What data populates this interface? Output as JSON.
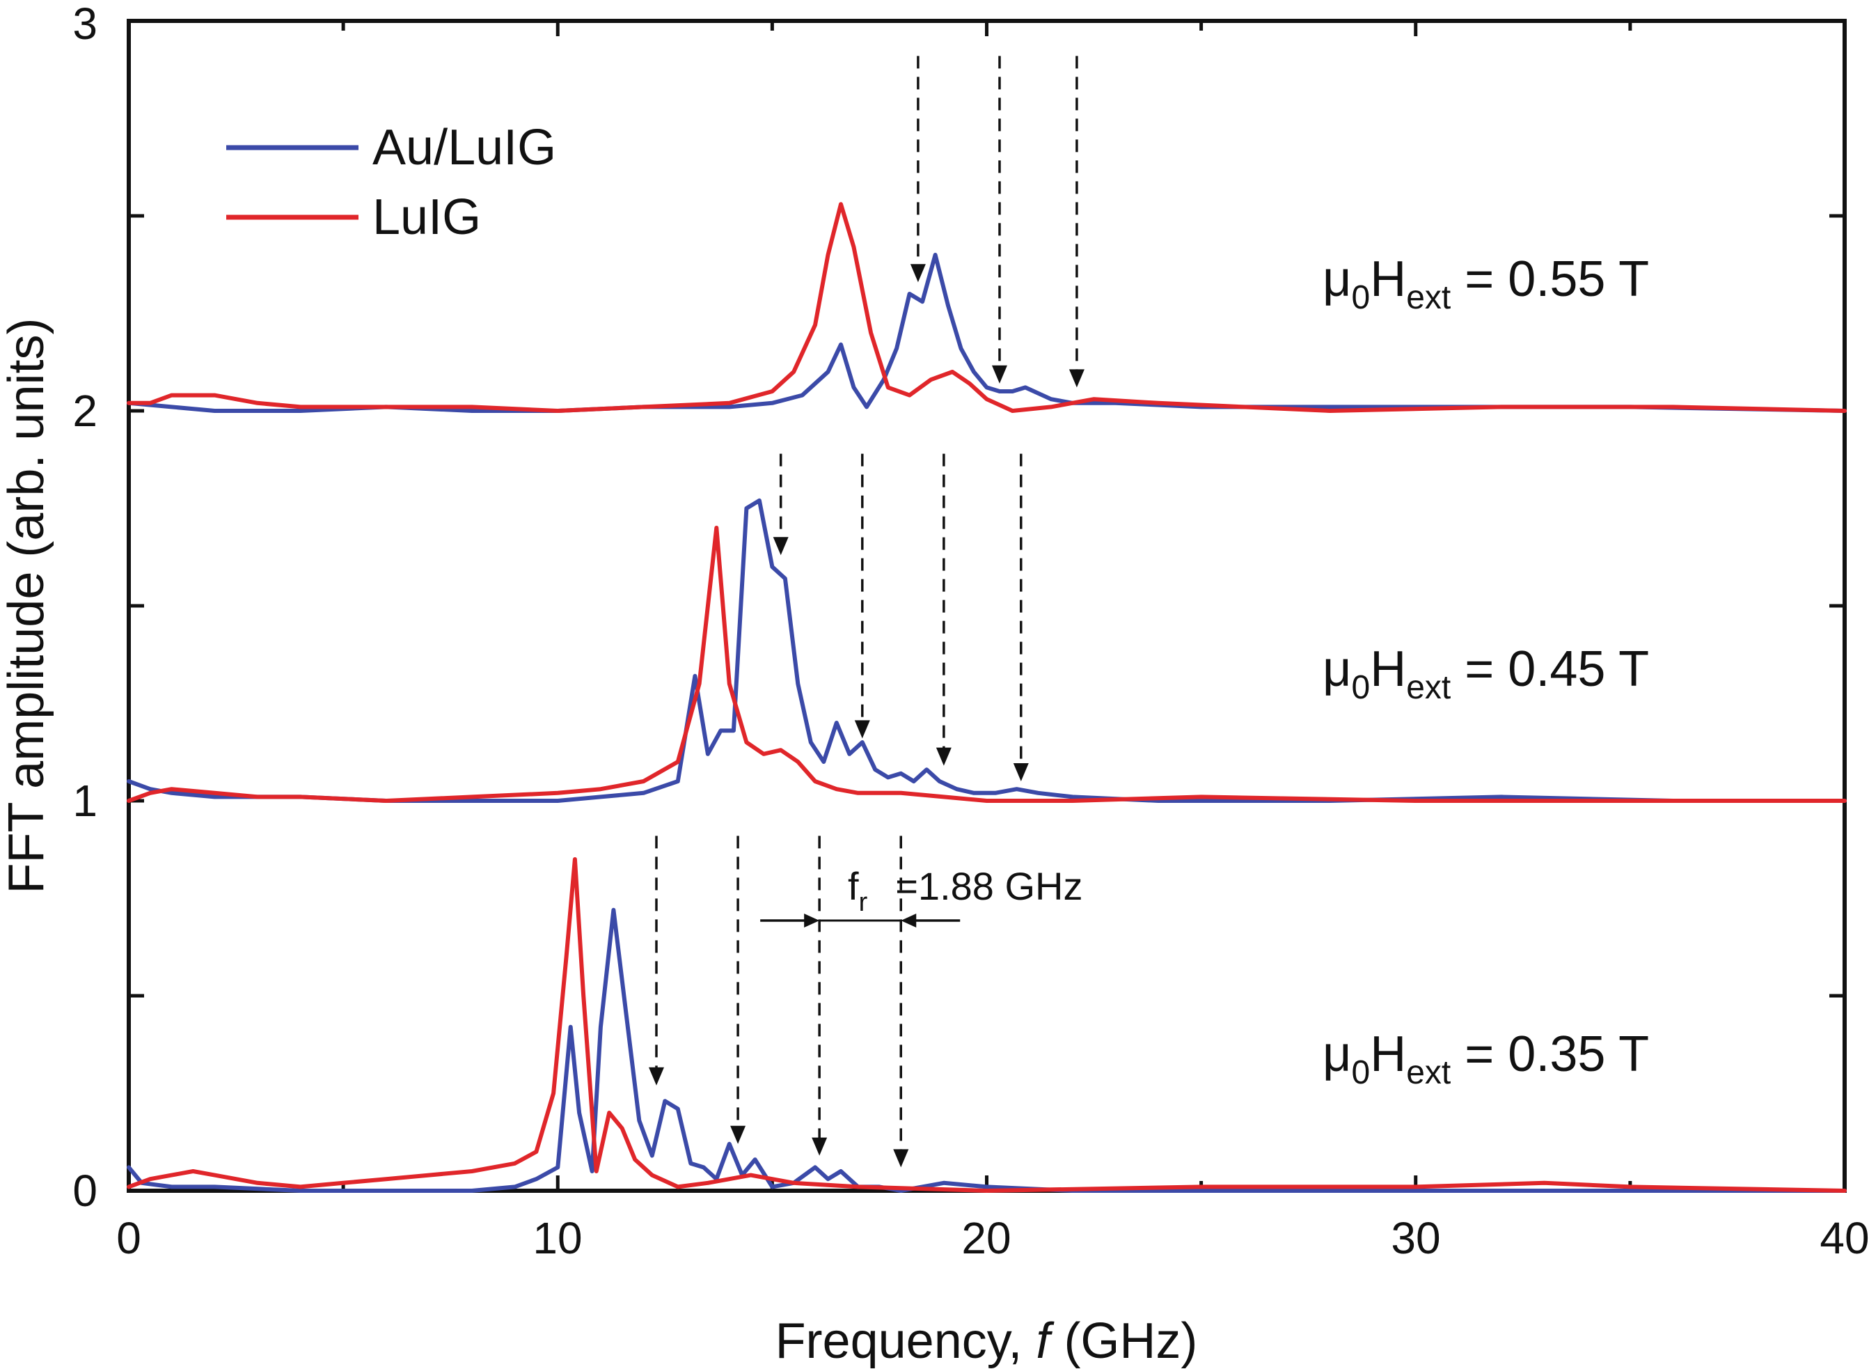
{
  "chart_data": {
    "type": "line",
    "title": "",
    "xlabel_prefix": "Frequency, ",
    "xlabel_var": "f",
    "xlabel_suffix": " (GHz)",
    "ylabel": "FFT amplitude (arb. units)",
    "xlim": [
      0,
      40
    ],
    "ylim": [
      0,
      3
    ],
    "x_ticks": [
      0,
      10,
      20,
      30,
      40
    ],
    "y_ticks": [
      0,
      1,
      2,
      3
    ],
    "legend_position": "top-left",
    "colors": {
      "Au/LuIG": "#3b4aa8",
      "LuIG": "#e0262a",
      "axis": "#111111"
    },
    "legend": [
      {
        "name": "Au/LuIG",
        "color": "#3b4aa8"
      },
      {
        "name": "LuIG",
        "color": "#e0262a"
      }
    ],
    "field_labels": [
      {
        "mu": "μ",
        "sub1": "0",
        "H": "H",
        "sub2": "ext",
        "rest": " = 0.55 T",
        "offset": 2
      },
      {
        "mu": "μ",
        "sub1": "0",
        "H": "H",
        "sub2": "ext",
        "rest": " = 0.45 T",
        "offset": 1
      },
      {
        "mu": "μ",
        "sub1": "0",
        "H": "H",
        "sub2": "ext",
        "rest": " = 0.35 T",
        "offset": 0
      }
    ],
    "annotation": {
      "symbol": "f",
      "sub": "r",
      "text": "=1.88 GHz",
      "arrow_from": 15.0,
      "arrow_to": 18.0
    },
    "arrows": [
      {
        "x": 18.4,
        "y_top": 2.91,
        "y_tip": 2.33
      },
      {
        "x": 20.3,
        "y_top": 2.91,
        "y_tip": 2.07
      },
      {
        "x": 22.1,
        "y_top": 2.91,
        "y_tip": 2.06
      },
      {
        "x": 15.2,
        "y_top": 1.89,
        "y_tip": 1.63
      },
      {
        "x": 17.1,
        "y_top": 1.89,
        "y_tip": 1.16
      },
      {
        "x": 19.0,
        "y_top": 1.89,
        "y_tip": 1.09
      },
      {
        "x": 20.8,
        "y_top": 1.89,
        "y_tip": 1.05
      },
      {
        "x": 12.3,
        "y_top": 0.91,
        "y_tip": 0.27
      },
      {
        "x": 14.2,
        "y_top": 0.91,
        "y_tip": 0.12
      },
      {
        "x": 16.1,
        "y_top": 0.91,
        "y_tip": 0.09
      },
      {
        "x": 18.0,
        "y_top": 0.91,
        "y_tip": 0.06
      }
    ],
    "series": [
      {
        "name": "Au/LuIG (0.55 T)",
        "color": "#3b4aa8",
        "offset": 2,
        "x": [
          0,
          1,
          2,
          4,
          6,
          8,
          10,
          12,
          14,
          15,
          15.7,
          16.3,
          16.6,
          16.9,
          17.2,
          17.6,
          17.9,
          18.2,
          18.5,
          18.8,
          19.1,
          19.4,
          19.7,
          20.0,
          20.3,
          20.6,
          20.9,
          21.5,
          22,
          23,
          25,
          30,
          35,
          40
        ],
        "y": [
          0.02,
          0.01,
          0.0,
          0.0,
          0.01,
          0.0,
          0.0,
          0.01,
          0.01,
          0.02,
          0.04,
          0.1,
          0.17,
          0.06,
          0.01,
          0.08,
          0.16,
          0.3,
          0.28,
          0.4,
          0.27,
          0.16,
          0.1,
          0.06,
          0.05,
          0.05,
          0.06,
          0.03,
          0.02,
          0.02,
          0.01,
          0.01,
          0.01,
          0.0
        ]
      },
      {
        "name": "LuIG (0.55 T)",
        "color": "#e0262a",
        "offset": 2,
        "x": [
          0,
          0.5,
          1,
          2,
          3,
          4,
          6,
          8,
          10,
          12,
          14,
          15,
          15.5,
          16.0,
          16.3,
          16.6,
          16.9,
          17.3,
          17.7,
          18.2,
          18.7,
          19.2,
          19.6,
          20.0,
          20.6,
          21.5,
          22.5,
          24,
          28,
          32,
          36,
          40
        ],
        "y": [
          0.02,
          0.02,
          0.04,
          0.04,
          0.02,
          0.01,
          0.01,
          0.01,
          0.0,
          0.01,
          0.02,
          0.05,
          0.1,
          0.22,
          0.4,
          0.53,
          0.42,
          0.2,
          0.06,
          0.04,
          0.08,
          0.1,
          0.07,
          0.03,
          0.0,
          0.01,
          0.03,
          0.02,
          0.0,
          0.01,
          0.01,
          0.0
        ]
      },
      {
        "name": "Au/LuIG (0.45 T)",
        "color": "#3b4aa8",
        "offset": 1,
        "x": [
          0,
          0.5,
          1,
          2,
          4,
          6,
          8,
          10,
          11,
          12,
          12.8,
          13.2,
          13.5,
          13.8,
          14.1,
          14.4,
          14.7,
          15.0,
          15.3,
          15.6,
          15.9,
          16.2,
          16.5,
          16.8,
          17.1,
          17.4,
          17.7,
          18.0,
          18.3,
          18.6,
          18.9,
          19.3,
          19.7,
          20.2,
          20.7,
          21.2,
          22,
          24,
          28,
          32,
          36,
          40
        ],
        "y": [
          0.05,
          0.03,
          0.02,
          0.01,
          0.01,
          0.0,
          0.0,
          0.0,
          0.01,
          0.02,
          0.05,
          0.32,
          0.12,
          0.18,
          0.18,
          0.75,
          0.77,
          0.6,
          0.57,
          0.3,
          0.15,
          0.1,
          0.2,
          0.12,
          0.15,
          0.08,
          0.06,
          0.07,
          0.05,
          0.08,
          0.05,
          0.03,
          0.02,
          0.02,
          0.03,
          0.02,
          0.01,
          0.0,
          0.0,
          0.01,
          0.0,
          0.0
        ]
      },
      {
        "name": "LuIG (0.45 T)",
        "color": "#e0262a",
        "offset": 1,
        "x": [
          0,
          0.5,
          1,
          2,
          3,
          4,
          6,
          8,
          10,
          11,
          12,
          12.8,
          13.3,
          13.7,
          14.0,
          14.4,
          14.8,
          15.2,
          15.6,
          16.0,
          16.5,
          17.0,
          18,
          19,
          20,
          22,
          25,
          30,
          35,
          40
        ],
        "y": [
          0.0,
          0.02,
          0.03,
          0.02,
          0.01,
          0.01,
          0.0,
          0.01,
          0.02,
          0.03,
          0.05,
          0.1,
          0.3,
          0.7,
          0.3,
          0.15,
          0.12,
          0.13,
          0.1,
          0.05,
          0.03,
          0.02,
          0.02,
          0.01,
          0.0,
          0.0,
          0.01,
          0.0,
          0.0,
          0.0
        ]
      },
      {
        "name": "Au/LuIG (0.35 T)",
        "color": "#3b4aa8",
        "offset": 0,
        "x": [
          0,
          0.3,
          1,
          2,
          4,
          6,
          8,
          9,
          9.5,
          10.0,
          10.3,
          10.5,
          10.8,
          11.0,
          11.3,
          11.6,
          11.9,
          12.2,
          12.5,
          12.8,
          13.1,
          13.4,
          13.7,
          14.0,
          14.3,
          14.6,
          15.0,
          15.5,
          16.0,
          16.3,
          16.6,
          17.0,
          17.5,
          18,
          19,
          20,
          22,
          25,
          30,
          35,
          40
        ],
        "y": [
          0.06,
          0.02,
          0.01,
          0.01,
          0.0,
          0.0,
          0.0,
          0.01,
          0.03,
          0.06,
          0.42,
          0.2,
          0.05,
          0.42,
          0.72,
          0.45,
          0.18,
          0.09,
          0.23,
          0.21,
          0.07,
          0.06,
          0.03,
          0.12,
          0.04,
          0.08,
          0.01,
          0.02,
          0.06,
          0.03,
          0.05,
          0.01,
          0.01,
          0.0,
          0.02,
          0.01,
          0.0,
          0.0,
          0.0,
          0.0,
          0.0
        ]
      },
      {
        "name": "LuIG (0.35 T)",
        "color": "#e0262a",
        "offset": 0,
        "x": [
          0,
          0.5,
          1,
          1.5,
          2,
          3,
          4,
          5,
          6,
          7,
          8,
          9,
          9.5,
          9.9,
          10.2,
          10.4,
          10.6,
          10.9,
          11.2,
          11.5,
          11.8,
          12.2,
          12.8,
          13.5,
          14.5,
          15.5,
          17,
          20,
          25,
          30,
          33,
          35,
          40
        ],
        "y": [
          0.01,
          0.03,
          0.04,
          0.05,
          0.04,
          0.02,
          0.01,
          0.02,
          0.03,
          0.04,
          0.05,
          0.07,
          0.1,
          0.25,
          0.6,
          0.85,
          0.5,
          0.05,
          0.2,
          0.16,
          0.08,
          0.04,
          0.01,
          0.02,
          0.04,
          0.02,
          0.01,
          0.0,
          0.01,
          0.01,
          0.02,
          0.01,
          0.0
        ]
      }
    ]
  }
}
